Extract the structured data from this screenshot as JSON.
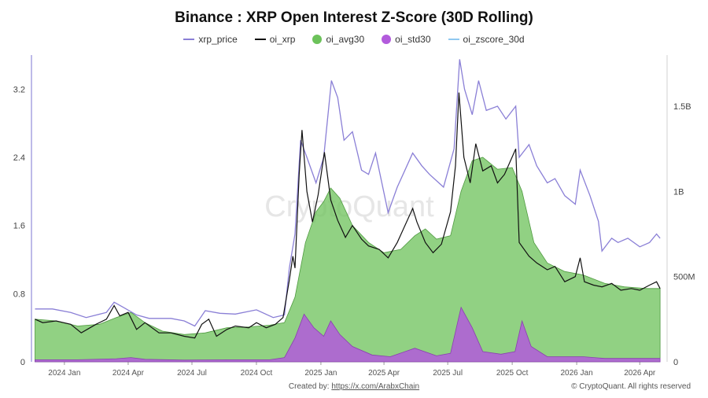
{
  "chart_data": {
    "type": "line",
    "title": "Binance : XRP Open Interest Z-Score (30D Rolling)",
    "watermark": "CryptoQuant",
    "legend": [
      {
        "name": "xrp_price",
        "color": "#8a7fd6",
        "kind": "line"
      },
      {
        "name": "oi_xrp",
        "color": "#111111",
        "kind": "line"
      },
      {
        "name": "oi_avg30",
        "color": "#6cc25a",
        "kind": "dot"
      },
      {
        "name": "oi_std30",
        "color": "#b25bdc",
        "kind": "dot"
      },
      {
        "name": "oi_zscore_30d",
        "color": "#8fc8f0",
        "kind": "line"
      }
    ],
    "left_axis": {
      "min": 0,
      "max": 3.6,
      "ticks": [
        0,
        0.8,
        1.6,
        2.4,
        3.2
      ],
      "tick_labels": [
        "0",
        "0.8",
        "1.6",
        "2.4",
        "3.2"
      ]
    },
    "right_axis": {
      "min": 0,
      "max": 1800000000,
      "ticks": [
        0,
        500000000,
        1000000000,
        1500000000
      ],
      "tick_labels": [
        "0",
        "500M",
        "1B",
        "1.5B"
      ]
    },
    "x_range": [
      "2023-11-15",
      "2026-05-10"
    ],
    "x_ticks": [
      {
        "date": "2024-01-01",
        "label": "2024 Jan"
      },
      {
        "date": "2024-04-01",
        "label": "2024 Apr"
      },
      {
        "date": "2024-07-01",
        "label": "2024 Jul"
      },
      {
        "date": "2024-10-01",
        "label": "2024 Oct"
      },
      {
        "date": "2025-01-01",
        "label": "2025 Jan"
      },
      {
        "date": "2025-04-01",
        "label": "2025 Apr"
      },
      {
        "date": "2025-07-01",
        "label": "2025 Jul"
      },
      {
        "date": "2025-10-01",
        "label": "2025 Oct"
      },
      {
        "date": "2026-01-01",
        "label": "2026 Jan"
      },
      {
        "date": "2026-04-01",
        "label": "2026 Apr"
      }
    ],
    "series": [
      {
        "name": "xrp_price",
        "axis": "left",
        "points": [
          [
            "2023-11-20",
            0.62
          ],
          [
            "2023-12-15",
            0.62
          ],
          [
            "2024-01-10",
            0.58
          ],
          [
            "2024-02-01",
            0.52
          ],
          [
            "2024-03-01",
            0.58
          ],
          [
            "2024-03-12",
            0.7
          ],
          [
            "2024-03-25",
            0.64
          ],
          [
            "2024-04-13",
            0.55
          ],
          [
            "2024-05-01",
            0.51
          ],
          [
            "2024-06-01",
            0.51
          ],
          [
            "2024-06-20",
            0.48
          ],
          [
            "2024-07-05",
            0.42
          ],
          [
            "2024-07-20",
            0.6
          ],
          [
            "2024-08-10",
            0.57
          ],
          [
            "2024-09-01",
            0.56
          ],
          [
            "2024-10-01",
            0.61
          ],
          [
            "2024-10-25",
            0.52
          ],
          [
            "2024-11-10",
            0.55
          ],
          [
            "2024-11-17",
            1.1
          ],
          [
            "2024-11-25",
            1.5
          ],
          [
            "2024-12-03",
            2.6
          ],
          [
            "2024-12-12",
            2.4
          ],
          [
            "2024-12-25",
            2.1
          ],
          [
            "2025-01-05",
            2.4
          ],
          [
            "2025-01-16",
            3.3
          ],
          [
            "2025-01-25",
            3.1
          ],
          [
            "2025-02-03",
            2.6
          ],
          [
            "2025-02-15",
            2.7
          ],
          [
            "2025-02-28",
            2.25
          ],
          [
            "2025-03-10",
            2.2
          ],
          [
            "2025-03-20",
            2.45
          ],
          [
            "2025-04-07",
            1.75
          ],
          [
            "2025-04-20",
            2.05
          ],
          [
            "2025-05-12",
            2.45
          ],
          [
            "2025-05-25",
            2.3
          ],
          [
            "2025-06-05",
            2.2
          ],
          [
            "2025-06-25",
            2.05
          ],
          [
            "2025-07-10",
            2.5
          ],
          [
            "2025-07-18",
            3.55
          ],
          [
            "2025-07-25",
            3.2
          ],
          [
            "2025-08-05",
            2.9
          ],
          [
            "2025-08-14",
            3.3
          ],
          [
            "2025-08-25",
            2.95
          ],
          [
            "2025-09-10",
            3.0
          ],
          [
            "2025-09-22",
            2.85
          ],
          [
            "2025-10-06",
            3.0
          ],
          [
            "2025-10-11",
            2.4
          ],
          [
            "2025-10-25",
            2.55
          ],
          [
            "2025-11-05",
            2.3
          ],
          [
            "2025-11-20",
            2.1
          ],
          [
            "2025-12-01",
            2.15
          ],
          [
            "2025-12-15",
            1.95
          ],
          [
            "2025-12-30",
            1.85
          ],
          [
            "2026-01-06",
            2.25
          ],
          [
            "2026-01-20",
            1.95
          ],
          [
            "2026-02-01",
            1.65
          ],
          [
            "2026-02-06",
            1.3
          ],
          [
            "2026-02-20",
            1.45
          ],
          [
            "2026-03-01",
            1.4
          ],
          [
            "2026-03-15",
            1.45
          ],
          [
            "2026-04-01",
            1.35
          ],
          [
            "2026-04-15",
            1.4
          ],
          [
            "2026-04-25",
            1.5
          ],
          [
            "2026-04-30",
            1.45
          ]
        ]
      },
      {
        "name": "oi_xrp",
        "axis": "right",
        "points": [
          [
            "2023-11-20",
            250000000
          ],
          [
            "2023-12-01",
            230000000
          ],
          [
            "2023-12-20",
            240000000
          ],
          [
            "2024-01-10",
            220000000
          ],
          [
            "2024-01-25",
            170000000
          ],
          [
            "2024-02-15",
            220000000
          ],
          [
            "2024-03-01",
            250000000
          ],
          [
            "2024-03-12",
            330000000
          ],
          [
            "2024-03-20",
            270000000
          ],
          [
            "2024-04-01",
            290000000
          ],
          [
            "2024-04-13",
            190000000
          ],
          [
            "2024-04-25",
            230000000
          ],
          [
            "2024-05-15",
            170000000
          ],
          [
            "2024-06-01",
            170000000
          ],
          [
            "2024-06-20",
            150000000
          ],
          [
            "2024-07-05",
            140000000
          ],
          [
            "2024-07-15",
            220000000
          ],
          [
            "2024-07-25",
            250000000
          ],
          [
            "2024-08-05",
            150000000
          ],
          [
            "2024-08-20",
            190000000
          ],
          [
            "2024-09-01",
            210000000
          ],
          [
            "2024-09-20",
            200000000
          ],
          [
            "2024-10-01",
            230000000
          ],
          [
            "2024-10-15",
            200000000
          ],
          [
            "2024-10-28",
            220000000
          ],
          [
            "2024-11-08",
            260000000
          ],
          [
            "2024-11-17",
            480000000
          ],
          [
            "2024-11-22",
            620000000
          ],
          [
            "2024-11-25",
            550000000
          ],
          [
            "2024-12-01",
            1100000000
          ],
          [
            "2024-12-05",
            1360000000
          ],
          [
            "2024-12-12",
            1000000000
          ],
          [
            "2024-12-20",
            820000000
          ],
          [
            "2024-12-28",
            980000000
          ],
          [
            "2025-01-06",
            1230000000
          ],
          [
            "2025-01-15",
            950000000
          ],
          [
            "2025-01-25",
            830000000
          ],
          [
            "2025-02-05",
            730000000
          ],
          [
            "2025-02-15",
            800000000
          ],
          [
            "2025-02-28",
            720000000
          ],
          [
            "2025-03-10",
            680000000
          ],
          [
            "2025-03-25",
            660000000
          ],
          [
            "2025-04-07",
            610000000
          ],
          [
            "2025-04-20",
            700000000
          ],
          [
            "2025-05-12",
            900000000
          ],
          [
            "2025-05-18",
            820000000
          ],
          [
            "2025-05-30",
            700000000
          ],
          [
            "2025-06-10",
            640000000
          ],
          [
            "2025-06-22",
            690000000
          ],
          [
            "2025-07-05",
            880000000
          ],
          [
            "2025-07-12",
            1150000000
          ],
          [
            "2025-07-17",
            1580000000
          ],
          [
            "2025-07-24",
            1200000000
          ],
          [
            "2025-08-02",
            1050000000
          ],
          [
            "2025-08-10",
            1280000000
          ],
          [
            "2025-08-20",
            1120000000
          ],
          [
            "2025-09-01",
            1150000000
          ],
          [
            "2025-09-10",
            1050000000
          ],
          [
            "2025-09-20",
            1100000000
          ],
          [
            "2025-10-06",
            1250000000
          ],
          [
            "2025-10-11",
            700000000
          ],
          [
            "2025-10-25",
            620000000
          ],
          [
            "2025-11-05",
            580000000
          ],
          [
            "2025-11-20",
            540000000
          ],
          [
            "2025-12-01",
            560000000
          ],
          [
            "2025-12-15",
            470000000
          ],
          [
            "2025-12-30",
            500000000
          ],
          [
            "2026-01-06",
            610000000
          ],
          [
            "2026-01-12",
            470000000
          ],
          [
            "2026-01-25",
            450000000
          ],
          [
            "2026-02-06",
            440000000
          ],
          [
            "2026-02-20",
            460000000
          ],
          [
            "2026-03-05",
            420000000
          ],
          [
            "2026-03-20",
            430000000
          ],
          [
            "2026-04-01",
            420000000
          ],
          [
            "2026-04-15",
            450000000
          ],
          [
            "2026-04-25",
            470000000
          ],
          [
            "2026-04-30",
            430000000
          ]
        ]
      },
      {
        "name": "oi_avg30",
        "axis": "right",
        "points": [
          [
            "2023-11-20",
            250000000
          ],
          [
            "2023-12-20",
            240000000
          ],
          [
            "2024-01-20",
            210000000
          ],
          [
            "2024-02-20",
            220000000
          ],
          [
            "2024-03-15",
            260000000
          ],
          [
            "2024-04-05",
            290000000
          ],
          [
            "2024-04-25",
            230000000
          ],
          [
            "2024-05-20",
            180000000
          ],
          [
            "2024-06-20",
            160000000
          ],
          [
            "2024-07-20",
            170000000
          ],
          [
            "2024-08-20",
            200000000
          ],
          [
            "2024-09-20",
            205000000
          ],
          [
            "2024-10-20",
            215000000
          ],
          [
            "2024-11-10",
            230000000
          ],
          [
            "2024-11-25",
            380000000
          ],
          [
            "2024-12-10",
            700000000
          ],
          [
            "2024-12-25",
            880000000
          ],
          [
            "2025-01-05",
            940000000
          ],
          [
            "2025-01-15",
            1020000000
          ],
          [
            "2025-01-28",
            960000000
          ],
          [
            "2025-02-15",
            800000000
          ],
          [
            "2025-03-10",
            700000000
          ],
          [
            "2025-04-01",
            640000000
          ],
          [
            "2025-04-25",
            660000000
          ],
          [
            "2025-05-15",
            740000000
          ],
          [
            "2025-05-30",
            780000000
          ],
          [
            "2025-06-15",
            720000000
          ],
          [
            "2025-07-05",
            740000000
          ],
          [
            "2025-07-20",
            1000000000
          ],
          [
            "2025-08-05",
            1180000000
          ],
          [
            "2025-08-20",
            1200000000
          ],
          [
            "2025-09-10",
            1130000000
          ],
          [
            "2025-10-01",
            1140000000
          ],
          [
            "2025-10-15",
            1000000000
          ],
          [
            "2025-11-01",
            700000000
          ],
          [
            "2025-11-20",
            580000000
          ],
          [
            "2025-12-15",
            530000000
          ],
          [
            "2026-01-10",
            510000000
          ],
          [
            "2026-02-10",
            460000000
          ],
          [
            "2026-03-10",
            440000000
          ],
          [
            "2026-04-10",
            430000000
          ],
          [
            "2026-04-30",
            430000000
          ]
        ]
      },
      {
        "name": "oi_std30",
        "axis": "right",
        "points": [
          [
            "2023-11-20",
            12000000
          ],
          [
            "2024-01-20",
            12000000
          ],
          [
            "2024-03-15",
            18000000
          ],
          [
            "2024-04-05",
            25000000
          ],
          [
            "2024-04-25",
            15000000
          ],
          [
            "2024-06-20",
            10000000
          ],
          [
            "2024-08-20",
            12000000
          ],
          [
            "2024-10-20",
            12000000
          ],
          [
            "2024-11-10",
            25000000
          ],
          [
            "2024-11-25",
            140000000
          ],
          [
            "2024-12-08",
            280000000
          ],
          [
            "2024-12-22",
            200000000
          ],
          [
            "2025-01-05",
            150000000
          ],
          [
            "2025-01-15",
            240000000
          ],
          [
            "2025-01-28",
            160000000
          ],
          [
            "2025-02-15",
            90000000
          ],
          [
            "2025-03-15",
            40000000
          ],
          [
            "2025-04-10",
            30000000
          ],
          [
            "2025-05-15",
            80000000
          ],
          [
            "2025-06-15",
            35000000
          ],
          [
            "2025-07-05",
            50000000
          ],
          [
            "2025-07-20",
            320000000
          ],
          [
            "2025-08-05",
            200000000
          ],
          [
            "2025-08-20",
            60000000
          ],
          [
            "2025-09-15",
            45000000
          ],
          [
            "2025-10-05",
            60000000
          ],
          [
            "2025-10-15",
            240000000
          ],
          [
            "2025-10-28",
            90000000
          ],
          [
            "2025-11-20",
            30000000
          ],
          [
            "2026-01-10",
            30000000
          ],
          [
            "2026-02-10",
            20000000
          ],
          [
            "2026-04-10",
            20000000
          ],
          [
            "2026-04-30",
            20000000
          ]
        ]
      }
    ]
  },
  "footer": {
    "created_label": "Created by: ",
    "created_link": "https://x.com/ArabxChain",
    "copyright": "© CryptoQuant. All rights reserved"
  }
}
